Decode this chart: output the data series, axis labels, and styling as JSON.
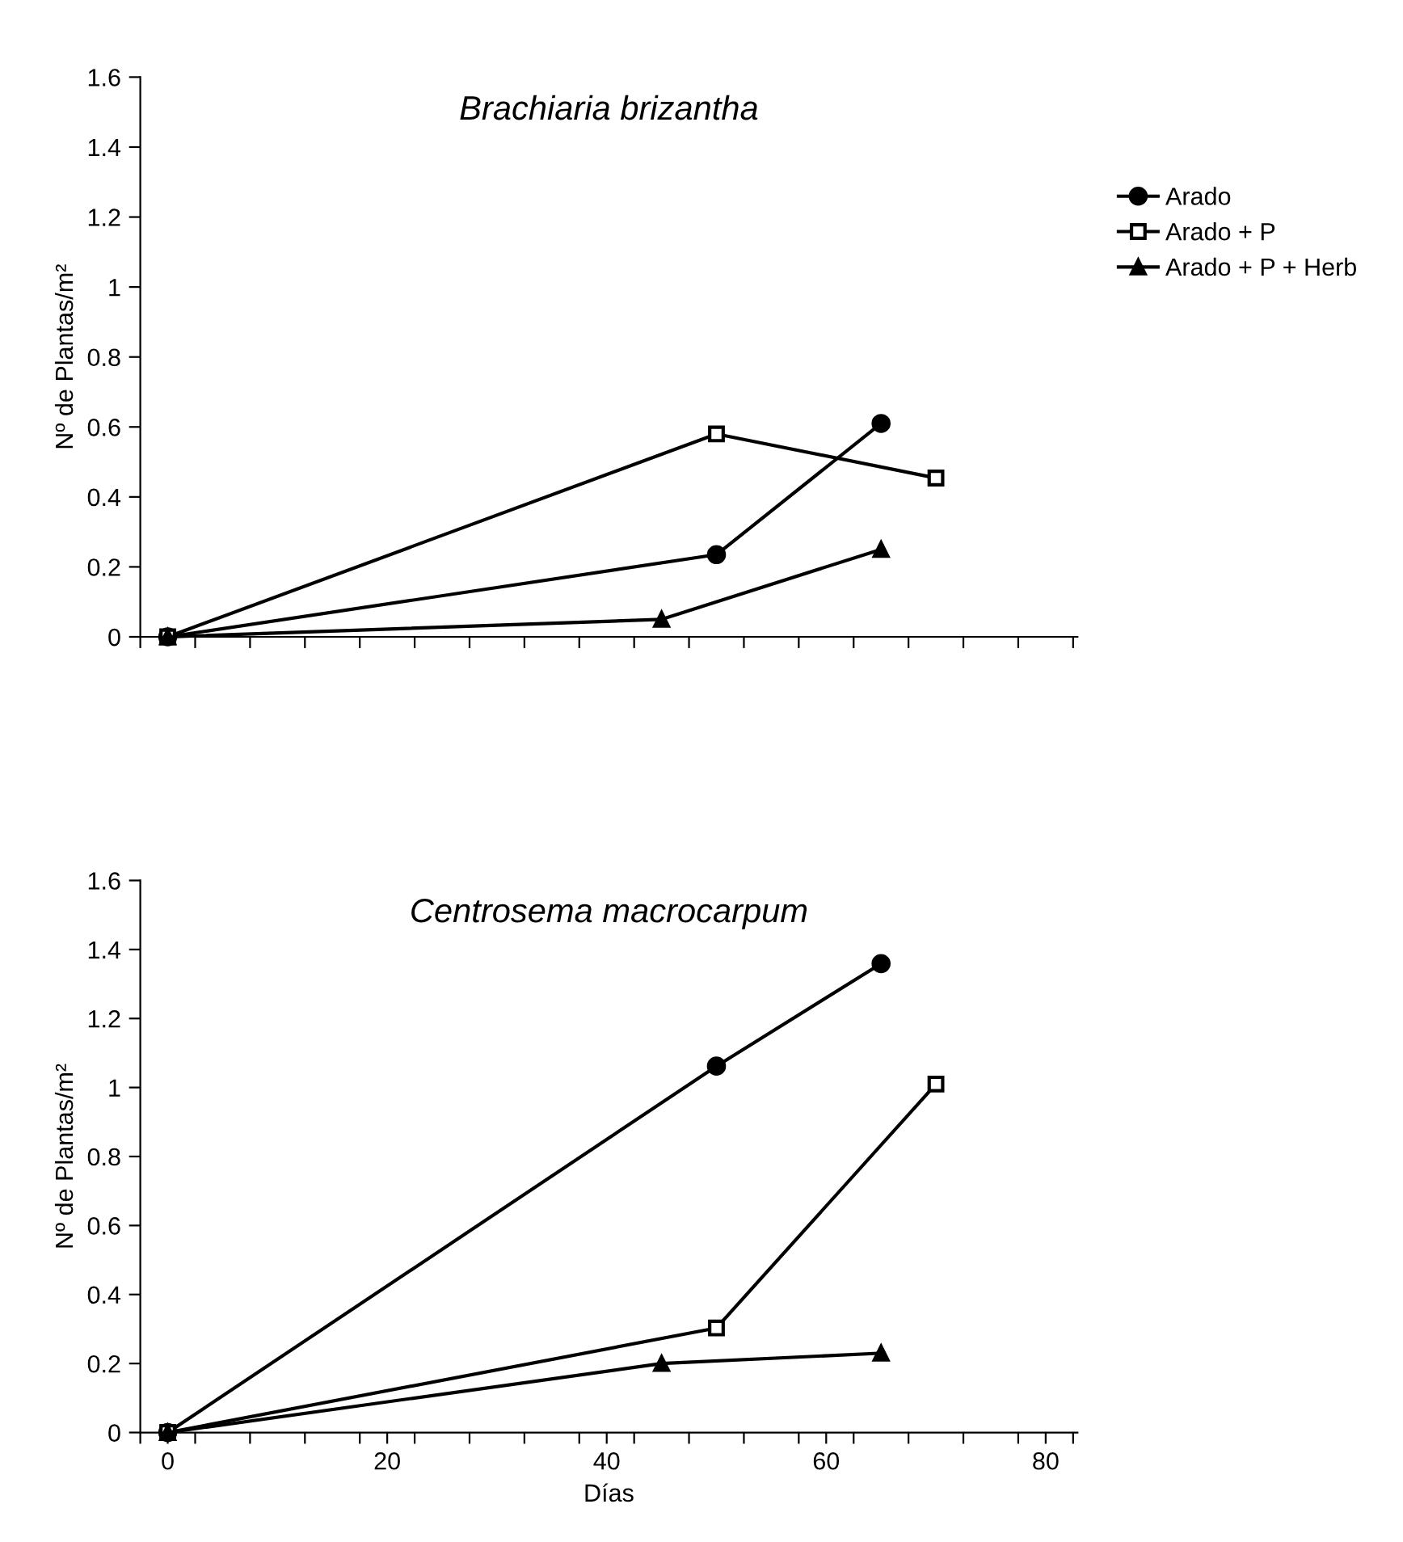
{
  "chart_data": [
    {
      "type": "line",
      "title": "Brachiaria brizantha",
      "ylabel": "Nº de Plantas/m²",
      "xlim": [
        -2.5,
        82.9
      ],
      "ylim": [
        0,
        1.6
      ],
      "xticks": [
        {
          "value": -2.5,
          "label": null
        },
        {
          "value": 2.5,
          "label": null
        },
        {
          "value": 7.5,
          "label": null
        },
        {
          "value": 12.5,
          "label": null
        },
        {
          "value": 17.5,
          "label": null
        },
        {
          "value": 22.5,
          "label": null
        },
        {
          "value": 27.5,
          "label": null
        },
        {
          "value": 32.5,
          "label": null
        },
        {
          "value": 37.5,
          "label": null
        },
        {
          "value": 42.5,
          "label": null
        },
        {
          "value": 47.5,
          "label": null
        },
        {
          "value": 52.5,
          "label": null
        },
        {
          "value": 57.5,
          "label": null
        },
        {
          "value": 62.5,
          "label": null
        },
        {
          "value": 67.5,
          "label": null
        },
        {
          "value": 72.5,
          "label": null
        },
        {
          "value": 77.5,
          "label": null
        },
        {
          "value": 82.5,
          "label": null
        }
      ],
      "yticks": [
        0,
        0.2,
        0.4,
        0.6,
        0.8,
        1,
        1.2,
        1.4,
        1.6
      ],
      "tick_labels": "y",
      "grid": false,
      "legend": "right",
      "line_style": "solid",
      "series": [
        {
          "name": "Arado",
          "color": "#000000",
          "marker": "circle",
          "x": [
            0,
            50,
            65
          ],
          "values": [
            0,
            0.235,
            0.61
          ]
        },
        {
          "name": "Arado + P",
          "color": "#000000",
          "marker": "square",
          "x": [
            0,
            50,
            70
          ],
          "values": [
            0,
            0.58,
            0.454
          ]
        },
        {
          "name": "Arado + P + Herb",
          "color": "#000000",
          "marker": "triangle",
          "x": [
            0,
            45,
            65
          ],
          "values": [
            0,
            0.05,
            0.25
          ]
        }
      ]
    },
    {
      "type": "line",
      "title": "Centrosema macrocarpum",
      "ylabel": "Nº de Plantas/m²",
      "xlabel": "Días",
      "xlim": [
        -2.5,
        82.9
      ],
      "ylim": [
        0,
        1.6
      ],
      "xticks": [
        0,
        20,
        40,
        60,
        80,
        {
          "value": -2.5,
          "label": null
        },
        {
          "value": 2.5,
          "label": null
        },
        {
          "value": 7.5,
          "label": null
        },
        {
          "value": 12.5,
          "label": null
        },
        {
          "value": 17.5,
          "label": null
        },
        {
          "value": 22.5,
          "label": null
        },
        {
          "value": 27.5,
          "label": null
        },
        {
          "value": 32.5,
          "label": null
        },
        {
          "value": 37.5,
          "label": null
        },
        {
          "value": 42.5,
          "label": null
        },
        {
          "value": 47.5,
          "label": null
        },
        {
          "value": 52.5,
          "label": null
        },
        {
          "value": 57.5,
          "label": null
        },
        {
          "value": 62.5,
          "label": null
        },
        {
          "value": 67.5,
          "label": null
        },
        {
          "value": 72.5,
          "label": null
        },
        {
          "value": 77.5,
          "label": null
        },
        {
          "value": 82.5,
          "label": null
        }
      ],
      "yticks": [
        0,
        0.2,
        0.4,
        0.6,
        0.8,
        1,
        1.2,
        1.4,
        1.6
      ],
      "grid": false,
      "line_style": "solid",
      "series": [
        {
          "color": "#000000",
          "marker": "circle",
          "x": [
            0,
            50,
            65
          ],
          "values": [
            0,
            1.062,
            1.359
          ]
        },
        {
          "color": "#000000",
          "marker": "square",
          "x": [
            0,
            50,
            70
          ],
          "values": [
            0,
            0.303,
            1.01
          ]
        },
        {
          "color": "#000000",
          "marker": "triangle",
          "x": [
            0,
            45,
            65
          ],
          "values": [
            0,
            0.2,
            0.23
          ]
        }
      ]
    }
  ]
}
